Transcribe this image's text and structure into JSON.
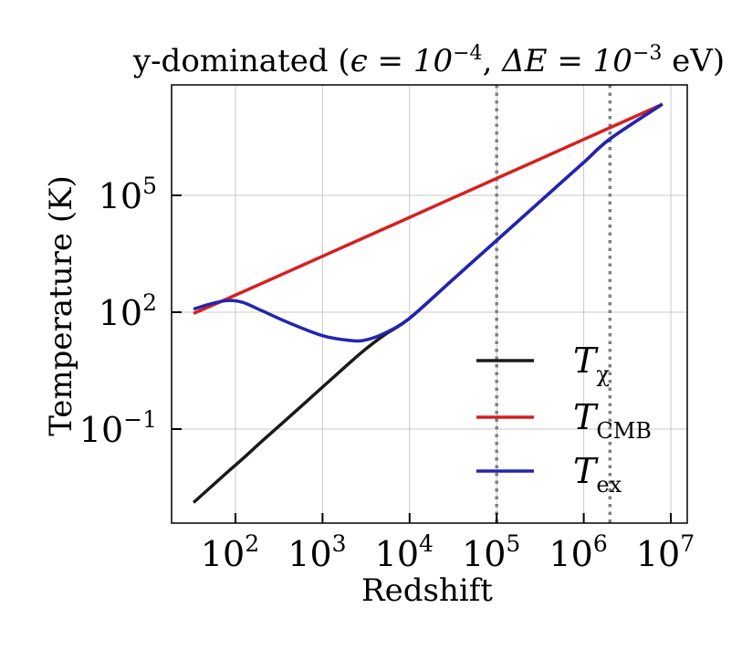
{
  "chart_data": {
    "type": "line",
    "title": "y-dominated (ε = 10^-4, ΔE = 10^-3 eV)",
    "title_parts": {
      "main": "y-dominated (",
      "eps": "ϵ = 10",
      "eps_exp": "−4",
      "sep": ", ",
      "de": "ΔE = 10",
      "de_exp": "−3",
      "unit": " eV)"
    },
    "xlabel": "Redshift",
    "ylabel": "Temperature (K)",
    "xscale": "log",
    "yscale": "log",
    "xlim": [
      15,
      12000000.0
    ],
    "ylim": [
      0.0003,
      100000000.0
    ],
    "grid": true,
    "legend_position": "lower right",
    "x_ticks": [
      {
        "value": 100,
        "base": "10",
        "exp": "2"
      },
      {
        "value": 1000,
        "base": "10",
        "exp": "3"
      },
      {
        "value": 10000,
        "base": "10",
        "exp": "4"
      },
      {
        "value": 100000,
        "base": "10",
        "exp": "5"
      },
      {
        "value": 1000000,
        "base": "10",
        "exp": "6"
      },
      {
        "value": 10000000,
        "base": "10",
        "exp": "7"
      }
    ],
    "y_ticks": [
      {
        "value": 0.1,
        "base": "10",
        "exp": "−1"
      },
      {
        "value": 100,
        "base": "10",
        "exp": "2"
      },
      {
        "value": 100000,
        "base": "10",
        "exp": "5"
      }
    ],
    "vlines": [
      {
        "x": 100000,
        "style": "dotted",
        "color": "#808080"
      },
      {
        "x": 2000000,
        "style": "dotted",
        "color": "#808080"
      }
    ],
    "x": [
      33,
      50,
      80,
      120,
      200,
      400,
      1000,
      2000,
      3000,
      5000,
      10000,
      30000,
      100000,
      300000,
      1000000,
      2000000,
      8000000
    ],
    "series": [
      {
        "name": "T_χ",
        "label_base": "T",
        "label_sub": "χ",
        "color": "#1a1a1a",
        "values": [
          0.0013,
          0.003,
          0.0077,
          0.017,
          0.048,
          0.19,
          1.2,
          4.8,
          10.5,
          25,
          70,
          630,
          7000,
          63000,
          700000,
          2800000,
          22000000
        ]
      },
      {
        "name": "T_CMB",
        "label_base": "T",
        "label_sub": "CMB",
        "color": "#d62020",
        "values": [
          93,
          139,
          221,
          330,
          548,
          1093,
          2728,
          5453,
          8178,
          13628,
          27253,
          81753,
          272503,
          817503,
          2725003,
          5450003,
          21800003
        ]
      },
      {
        "name": "T_ex",
        "label_base": "T",
        "label_sub": "ex",
        "color": "#2424b0",
        "values": [
          120,
          160,
          200,
          180,
          110,
          55,
          25,
          19,
          19,
          28,
          70,
          630,
          7000,
          63000,
          700000,
          2800000,
          22000000
        ]
      }
    ]
  }
}
